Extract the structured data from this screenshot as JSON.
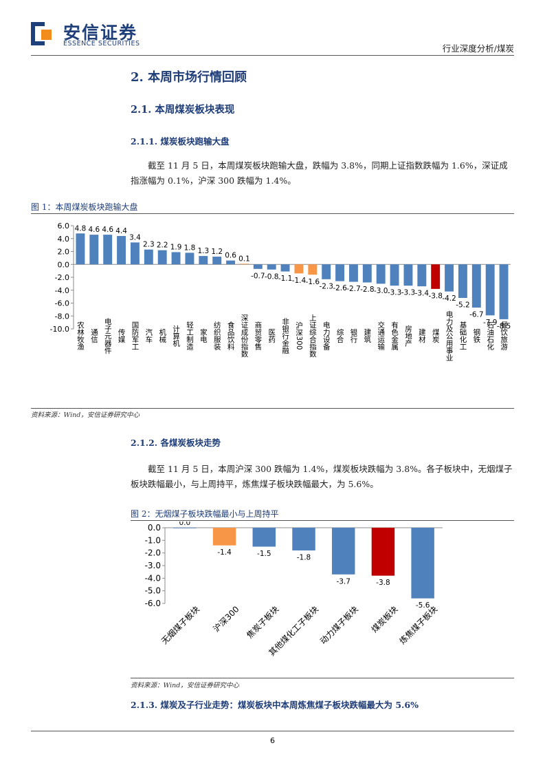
{
  "header": {
    "logo_cn": "安信证券",
    "logo_en": "ESSENCE SECURITIES",
    "report_type": "行业深度分析/煤炭"
  },
  "sections": {
    "h1": "2. 本周市场行情回顾",
    "h2": "2.1. 本周煤炭板块表现",
    "h3_1": "2.1.1. 煤炭板块跑输大盘",
    "para1": "截至 11 月 5 日，本周煤炭板块跑输大盘，跌幅为 3.8%，同期上证指数跌幅为 1.6%，深证成指涨幅为 0.1%，沪深 300 跌幅为 1.4%。",
    "fig1_caption": "图 1：本周煤炭板块跑输大盘",
    "fig1_source": "资料来源：Wind，安信证券研究中心",
    "h3_2": "2.1.2. 各煤炭板块走势",
    "para2": "截至 11 月 5 日，本周沪深 300 跌幅为 1.4%，煤炭板块跌幅为 3.8%。各子板块中，无烟煤子板块跌幅最小，与上周持平，炼焦煤子板块跌幅最大，为 5.6%。",
    "fig2_caption": "图 2：无烟煤子板块跌幅最小与上周持平",
    "fig2_source": "资料来源：Wind，安信证券研究中心",
    "h3_3": "2.1.3. 煤炭及子行业走势：煤炭板块中本周炼焦煤子板块跌幅最大为 5.6%"
  },
  "page_number": "6",
  "colors": {
    "blue": "#4f81bd",
    "orange": "#f79646",
    "red": "#c00000",
    "heading": "#1e3c78"
  },
  "chart_data": [
    {
      "type": "bar",
      "categories": [
        "农林牧渔",
        "通信",
        "电子元器件",
        "传媒",
        "国防军工",
        "汽车",
        "机械",
        "计算机",
        "轻工制造",
        "家电",
        "纺织服装",
        "食品饮料",
        "深证成份指数",
        "商贸零售",
        "医药",
        "非银行金融",
        "沪深300",
        "上证综合指数",
        "电力设备",
        "综合",
        "银行",
        "建筑",
        "交通运输",
        "有色金属",
        "房地产",
        "建材",
        "煤炭",
        "电力及公用事业",
        "基础化工",
        "钢铁",
        "石油石化",
        "餐饮旅游"
      ],
      "values": [
        4.8,
        4.6,
        4.6,
        4.4,
        3.4,
        2.3,
        2.2,
        1.9,
        1.8,
        1.3,
        1.2,
        0.6,
        0.1,
        -0.7,
        -0.8,
        -1.1,
        -1.4,
        -1.6,
        -2.3,
        -2.6,
        -2.7,
        -2.8,
        -3.0,
        -3.3,
        -3.3,
        -3.4,
        -3.8,
        -4.2,
        -5.2,
        -6.7,
        -7.9,
        -8.5
      ],
      "labels": [
        "4.8",
        "4.6",
        "4.6",
        "4.4",
        "3.4",
        "2.3",
        "2.2",
        "1.9",
        "1.8",
        "1.3",
        "1.2",
        "0.6",
        "0.1",
        "-0.7",
        "-0.8",
        "-1.1",
        "-1.4",
        "-1.6",
        "-2.3",
        "-2.6",
        "-2.7",
        "-2.8",
        "-3.0",
        "-3.3",
        "-3.3",
        "-3.4",
        "-3.8",
        "-4.2",
        "-5.2",
        "-6.7",
        "-7.9",
        "-8.5"
      ],
      "highlight": {
        "深证成份指数": "orange",
        "沪深300": "orange",
        "上证综合指数": "orange",
        "煤炭": "red"
      },
      "ylim": [
        -10,
        6
      ],
      "yticks": [
        "6.0",
        "4.0",
        "2.0",
        "0.0",
        "-2.0",
        "-4.0",
        "-6.0",
        "-8.0",
        "-10.0"
      ],
      "title": "",
      "xlabel": "",
      "ylabel": ""
    },
    {
      "type": "bar",
      "categories": [
        "无烟煤子板块",
        "沪深300",
        "焦炭子板块",
        "其他煤化工子板块",
        "动力煤子板块",
        "煤炭板块",
        "炼焦煤子板块"
      ],
      "values": [
        0.0,
        -1.4,
        -1.5,
        -1.8,
        -3.7,
        -3.8,
        -5.6
      ],
      "labels": [
        "0.0",
        "-1.4",
        "-1.5",
        "-1.8",
        "-3.7",
        "-3.8",
        "-5.6"
      ],
      "highlight": {
        "沪深300": "orange",
        "煤炭板块": "red"
      },
      "ylim": [
        -6,
        0
      ],
      "yticks": [
        "0.0",
        "-1.0",
        "-2.0",
        "-3.0",
        "-4.0",
        "-5.0",
        "-6.0"
      ],
      "title": "",
      "xlabel": "",
      "ylabel": ""
    }
  ]
}
